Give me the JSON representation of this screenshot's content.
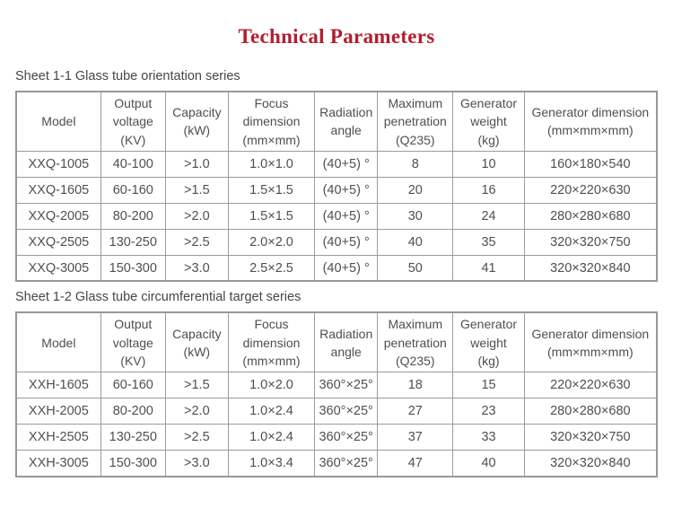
{
  "title": "Technical Parameters",
  "title_color": "#b21e2e",
  "border_color": "#9b9b9b",
  "tables": [
    {
      "caption": "Sheet 1-1 Glass tube orientation series",
      "columns": [
        "Model",
        "Output\nvoltage\n(KV)",
        "Capacity\n(kW)",
        "Focus\ndimension\n(mm×mm)",
        "Radiation\nangle",
        "Maximum\npenetration\n(Q235)",
        "Generator\nweight\n(kg)",
        "Generator dimension\n(mm×mm×mm)"
      ],
      "rows": [
        [
          "XXQ-1005",
          "40-100",
          ">1.0",
          "1.0×1.0",
          "(40+5) °",
          "8",
          "10",
          "160×180×540"
        ],
        [
          "XXQ-1605",
          "60-160",
          ">1.5",
          "1.5×1.5",
          "(40+5) °",
          "20",
          "16",
          "220×220×630"
        ],
        [
          "XXQ-2005",
          "80-200",
          ">2.0",
          "1.5×1.5",
          "(40+5) °",
          "30",
          "24",
          "280×280×680"
        ],
        [
          "XXQ-2505",
          "130-250",
          ">2.5",
          "2.0×2.0",
          "(40+5) °",
          "40",
          "35",
          "320×320×750"
        ],
        [
          "XXQ-3005",
          "150-300",
          ">3.0",
          "2.5×2.5",
          "(40+5) °",
          "50",
          "41",
          "320×320×840"
        ]
      ]
    },
    {
      "caption": "Sheet 1-2 Glass tube circumferential target series",
      "columns": [
        "Model",
        "Output\nvoltage\n(KV)",
        "Capacity\n(kW)",
        "Focus\ndimension\n(mm×mm)",
        "Radiation\nangle",
        "Maximum\npenetration\n(Q235)",
        "Generator\nweight\n(kg)",
        "Generator dimension\n(mm×mm×mm)"
      ],
      "rows": [
        [
          "XXH-1605",
          "60-160",
          ">1.5",
          "1.0×2.0",
          "360°×25°",
          "18",
          "15",
          "220×220×630"
        ],
        [
          "XXH-2005",
          "80-200",
          ">2.0",
          "1.0×2.4",
          "360°×25°",
          "27",
          "23",
          "280×280×680"
        ],
        [
          "XXH-2505",
          "130-250",
          ">2.5",
          "1.0×2.4",
          "360°×25°",
          "37",
          "33",
          "320×320×750"
        ],
        [
          "XXH-3005",
          "150-300",
          ">3.0",
          "1.0×3.4",
          "360°×25°",
          "47",
          "40",
          "320×320×840"
        ]
      ]
    }
  ]
}
